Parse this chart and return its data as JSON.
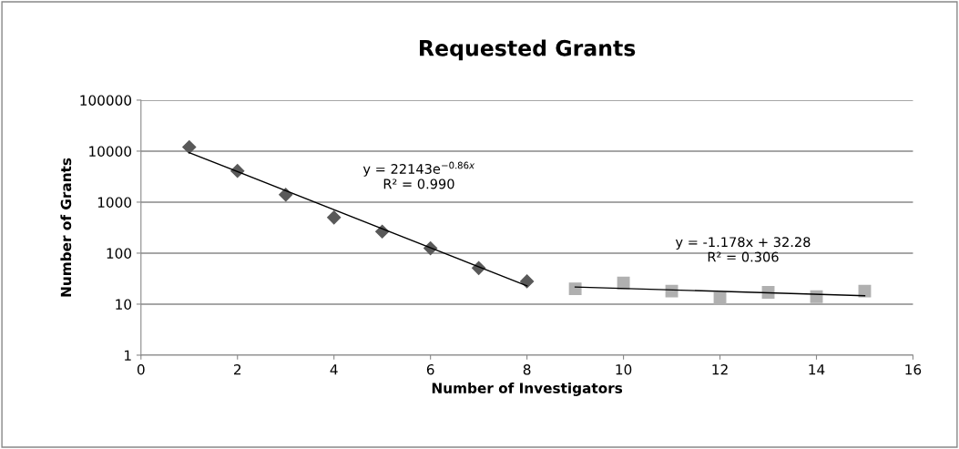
{
  "chart_data": {
    "type": "scatter",
    "title": "Requested Grants",
    "xlabel": "Number of Investigators",
    "ylabel": "Number of Grants",
    "log": "y",
    "grid": "y",
    "legend": false,
    "xlim": [
      0,
      16
    ],
    "xticks": [
      0,
      2,
      4,
      6,
      8,
      10,
      12,
      14,
      16
    ],
    "ylim": [
      1,
      100000
    ],
    "yticks": [
      1,
      10,
      100,
      1000,
      10000,
      100000
    ],
    "series": [
      {
        "marker": "diamond",
        "color": "#595959",
        "x": [
          1,
          2,
          3,
          4,
          5,
          6,
          7,
          8
        ],
        "values": [
          12000,
          4100,
          1400,
          500,
          265,
          125,
          51,
          28
        ]
      },
      {
        "marker": "square",
        "color": "#b0b0b0",
        "x": [
          9,
          10,
          11,
          12,
          13,
          14,
          15
        ],
        "values": [
          20,
          26,
          18,
          13,
          17,
          14,
          18
        ]
      },
      {
        "type": "line",
        "marker": "none",
        "color": "#000000",
        "x": [
          1,
          8
        ],
        "values": [
          9370,
          22.8
        ]
      },
      {
        "type": "line",
        "marker": "none",
        "color": "#000000",
        "x": [
          9,
          15
        ],
        "values": [
          21.7,
          14.6
        ]
      }
    ],
    "annotations": [
      "y = 22143e$^{−0.86x}$\nR² = 0.990",
      "y = -1.178x + 32.28\nR² = 0.306"
    ]
  }
}
